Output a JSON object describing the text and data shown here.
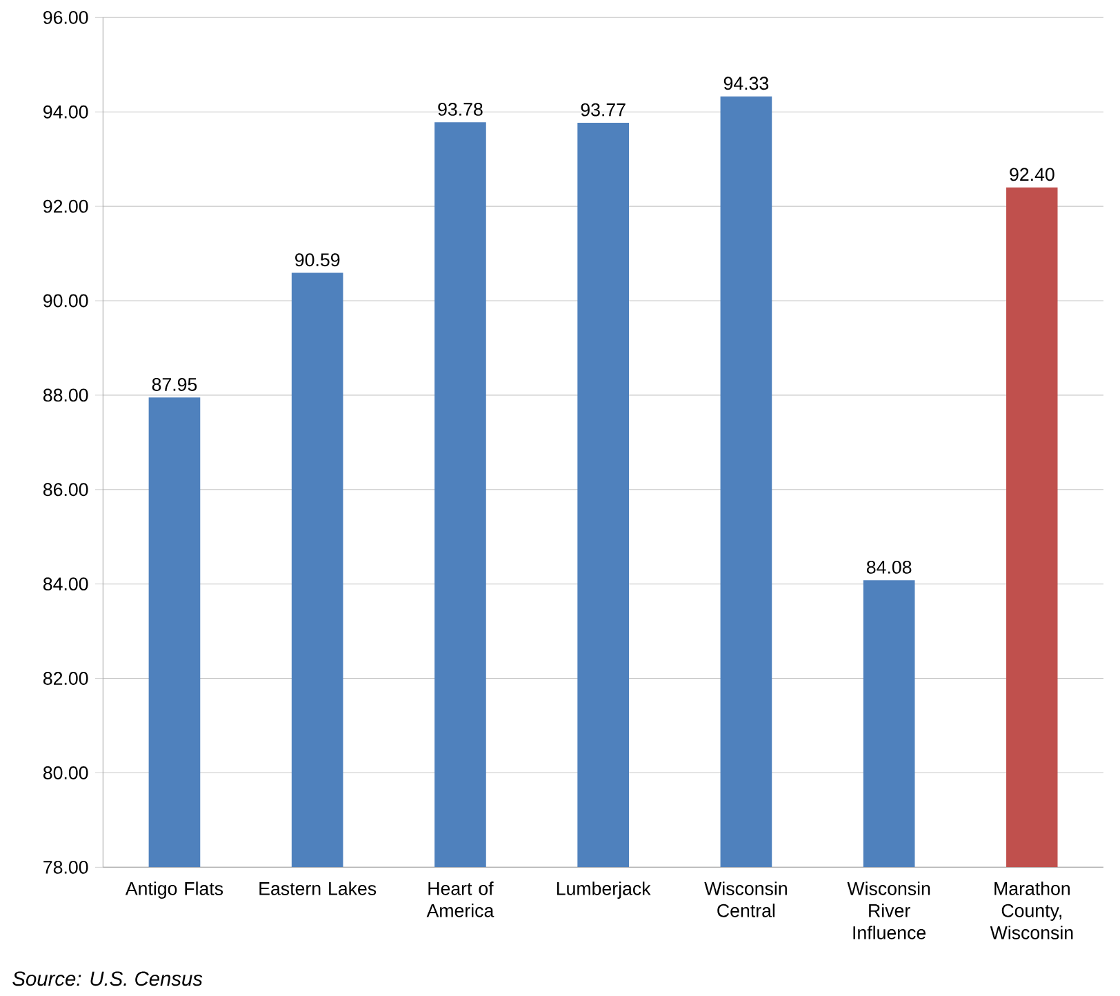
{
  "chart_data": {
    "type": "bar",
    "categories": [
      "Antigo Flats",
      "Eastern Lakes",
      "Heart of America",
      "Lumberjack",
      "Wisconsin Central",
      "Wisconsin River Influence",
      "Marathon County, Wisconsin"
    ],
    "values": [
      87.95,
      90.59,
      93.78,
      93.77,
      94.33,
      84.08,
      92.4
    ],
    "colors": [
      "#4f81bd",
      "#4f81bd",
      "#4f81bd",
      "#4f81bd",
      "#4f81bd",
      "#4f81bd",
      "#c0504d"
    ],
    "value_labels": [
      "87.95",
      "90.59",
      "93.78",
      "93.77",
      "94.33",
      "84.08",
      "92.40"
    ],
    "ylim": [
      78,
      96
    ],
    "yticks": [
      {
        "value": 78,
        "label": "78.00"
      },
      {
        "value": 80,
        "label": "80.00"
      },
      {
        "value": 82,
        "label": "82.00"
      },
      {
        "value": 84,
        "label": "84.00"
      },
      {
        "value": 86,
        "label": "86.00"
      },
      {
        "value": 88,
        "label": "88.00"
      },
      {
        "value": 90,
        "label": "90.00"
      },
      {
        "value": 92,
        "label": "92.00"
      },
      {
        "value": 94,
        "label": "94.00"
      },
      {
        "value": 96,
        "label": "96.00"
      }
    ],
    "grid": "y",
    "annotations": [
      "Source: U.S. Census"
    ]
  }
}
